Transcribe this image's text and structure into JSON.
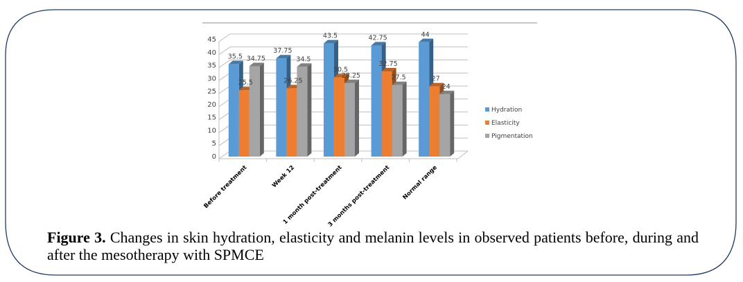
{
  "frame": {
    "border_color": "#1f3a5f"
  },
  "caption": {
    "label": "Figure 3.",
    "text": " Changes in skin hydration, elasticity and melanin levels in observed patients before, during and after the mesotherapy with SPMCE"
  },
  "chart_data": {
    "type": "bar",
    "style": "3d-clustered-column",
    "title": "",
    "xlabel": "",
    "ylabel": "",
    "categories": [
      "Before treatment",
      "Week 12",
      "1 month post-treatment",
      "3 months post-treatment",
      "Normal range"
    ],
    "series": [
      {
        "name": "Hydration",
        "color": "#5b9bd5",
        "values": [
          35.5,
          37.75,
          43.5,
          42.75,
          44
        ]
      },
      {
        "name": "Elasticity",
        "color": "#ed7d31",
        "values": [
          25.5,
          26.25,
          30.5,
          32.75,
          27
        ]
      },
      {
        "name": "Pigmentation",
        "color": "#a5a5a5",
        "values": [
          34.75,
          34.5,
          28.25,
          27.5,
          24
        ]
      }
    ],
    "data_labels": [
      [
        "35.5",
        "37.75",
        "43.5",
        "42.75",
        "44"
      ],
      [
        "25.5",
        "26.25",
        "30.5",
        "32.75",
        "27"
      ],
      [
        "34.75",
        "34.5",
        "28.25",
        "27.5",
        "24"
      ]
    ],
    "ylim": [
      0,
      45
    ],
    "yticks": [
      0,
      5,
      10,
      15,
      20,
      25,
      30,
      35,
      40,
      45
    ],
    "grid": true,
    "legend": "right"
  }
}
